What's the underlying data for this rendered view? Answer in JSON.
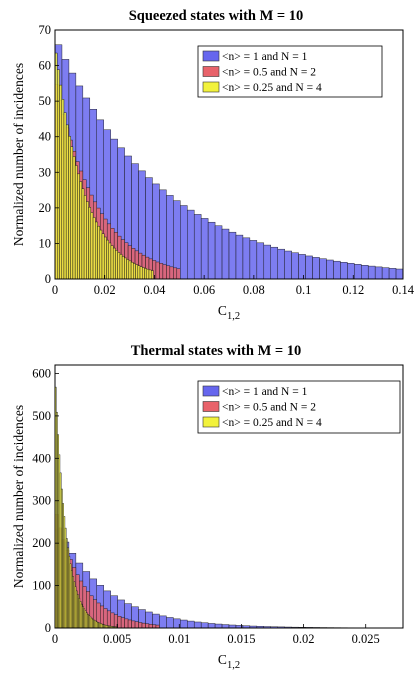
{
  "chart_data": [
    {
      "type": "bar",
      "title": "Squeezed states with M = 10",
      "xlabel_main": "C",
      "xlabel_sub": "1,2",
      "ylabel": "Normalized number of incidences",
      "xlim": [
        0,
        0.14
      ],
      "ylim": [
        0,
        70
      ],
      "x_ticks": [
        0,
        0.02,
        0.04,
        0.06,
        0.08,
        0.1,
        0.12,
        0.14
      ],
      "x_tick_labels": [
        "0",
        "0.02",
        "0.04",
        "0.06",
        "0.08",
        "0.1",
        "0.12",
        "0.14"
      ],
      "y_ticks": [
        0,
        10,
        20,
        30,
        40,
        50,
        60,
        70
      ],
      "y_tick_labels": [
        "0",
        "10",
        "20",
        "30",
        "40",
        "50",
        "60",
        "70"
      ],
      "legend_position": "top-right",
      "grid": false,
      "series": [
        {
          "name": "<n> = 1 and N = 1",
          "color": "#6666ee",
          "lambda": 23,
          "peak": 68,
          "bin_width": 0.0028,
          "count": 50
        },
        {
          "name": "<n> = 0.5 and N = 2",
          "color": "#e8626a",
          "lambda": 60,
          "peak": 57,
          "bin_width": 0.0014,
          "count": 36
        },
        {
          "name": "<n> = 0.25 and N = 4",
          "color": "#f2f23c",
          "lambda": 85,
          "peak": 66,
          "bin_width": 0.0009,
          "count": 44
        }
      ]
    },
    {
      "type": "bar",
      "title": "Thermal states with M = 10",
      "xlabel_main": "C",
      "xlabel_sub": "1,2",
      "ylabel": "Normalized number of incidences",
      "xlim": [
        0,
        0.028
      ],
      "ylim": [
        0,
        620
      ],
      "x_ticks": [
        0,
        0.005,
        0.01,
        0.015,
        0.02,
        0.025
      ],
      "x_tick_labels": [
        "0",
        "0.005",
        "0.01",
        "0.015",
        "0.02",
        "0.025"
      ],
      "y_ticks": [
        0,
        100,
        200,
        300,
        400,
        500,
        600
      ],
      "y_tick_labels": [
        "0",
        "100",
        "200",
        "300",
        "400",
        "500",
        "600"
      ],
      "legend_position": "top-right",
      "grid": false,
      "series": [
        {
          "name": "<n> = 1 and N = 1",
          "color": "#6666ee",
          "lambda": 250,
          "peak": 250,
          "bin_width": 0.00056,
          "count": 50
        },
        {
          "name": "<n> = 0.5 and N = 2",
          "color": "#e8626a",
          "lambda": 450,
          "peak": 285,
          "bin_width": 0.00028,
          "count": 30
        },
        {
          "name": "<n> = 0.25 and N = 4",
          "color": "#f2f23c",
          "lambda": 1100,
          "peak": 600,
          "bin_width": 0.0001,
          "count": 50
        }
      ]
    }
  ]
}
